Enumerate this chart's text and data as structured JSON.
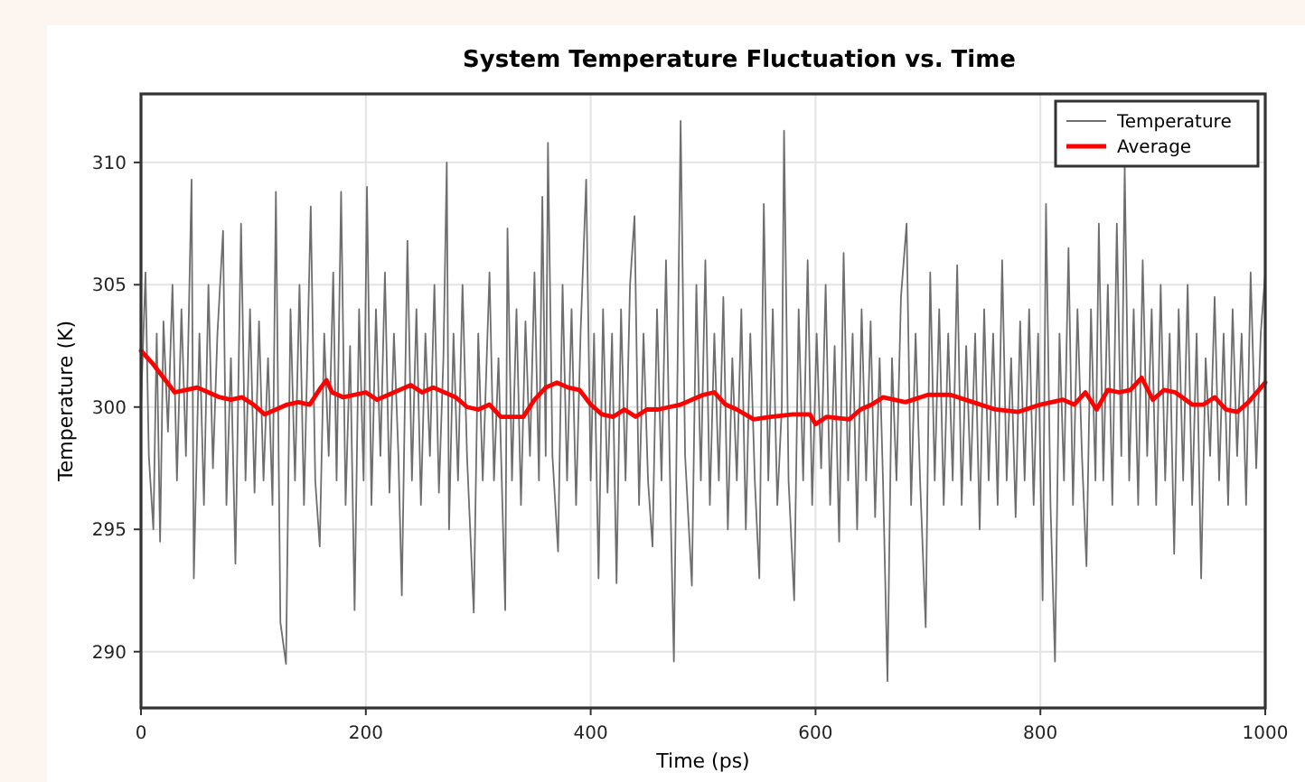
{
  "chart_data": {
    "type": "line",
    "title": "System Temperature Fluctuation vs. Time",
    "xlabel": "Time (ps)",
    "ylabel": "Temperature (K)",
    "xlim": [
      0,
      1000
    ],
    "ylim": [
      287.7,
      312.8
    ],
    "xticks": [
      0,
      200,
      400,
      600,
      800,
      1000
    ],
    "yticks": [
      290,
      295,
      300,
      305,
      310
    ],
    "grid": true,
    "legend": "top right",
    "line_style": "solid",
    "marker": "none",
    "series": [
      {
        "name": "Temperature",
        "color": "#6e6e6e",
        "x": [
          0,
          4,
          7,
          11,
          14,
          17,
          20,
          24,
          28,
          32,
          36,
          40,
          45,
          47,
          52,
          56,
          60,
          64,
          68,
          73,
          76,
          80,
          84,
          89,
          93,
          97,
          101,
          105,
          109,
          113,
          117,
          120,
          124,
          129,
          133,
          137,
          141,
          145,
          151,
          155,
          159,
          163,
          167,
          171,
          174,
          178,
          182,
          186,
          190,
          194,
          198,
          201,
          205,
          209,
          213,
          217,
          221,
          225,
          229,
          232,
          237,
          241,
          245,
          249,
          253,
          257,
          261,
          265,
          269,
          272,
          274,
          278,
          282,
          286,
          290,
          296,
          300,
          304,
          310,
          314,
          318,
          324,
          326,
          330,
          334,
          338,
          342,
          346,
          350,
          354,
          357,
          360,
          362,
          366,
          371,
          375,
          379,
          383,
          387,
          391,
          396,
          400,
          403,
          407,
          411,
          415,
          419,
          423,
          427,
          431,
          435,
          439,
          443,
          447,
          451,
          455,
          459,
          463,
          467,
          471,
          474,
          480,
          484,
          490,
          494,
          498,
          502,
          506,
          510,
          514,
          518,
          522,
          526,
          530,
          534,
          538,
          542,
          546,
          550,
          554,
          558,
          562,
          566,
          570,
          572,
          576,
          581,
          585,
          589,
          593,
          597,
          601,
          605,
          609,
          613,
          617,
          621,
          625,
          629,
          633,
          637,
          641,
          645,
          649,
          653,
          657,
          660,
          664,
          668,
          672,
          676,
          681,
          685,
          689,
          693,
          698,
          702,
          706,
          710,
          714,
          718,
          722,
          726,
          730,
          734,
          738,
          742,
          746,
          750,
          754,
          758,
          762,
          766,
          770,
          774,
          778,
          782,
          786,
          790,
          794,
          798,
          802,
          805,
          809,
          813,
          817,
          821,
          825,
          829,
          833,
          837,
          841,
          845,
          849,
          852,
          856,
          860,
          864,
          868,
          872,
          875,
          879,
          883,
          887,
          891,
          895,
          899,
          903,
          907,
          911,
          915,
          919,
          923,
          927,
          931,
          935,
          939,
          943,
          947,
          951,
          955,
          959,
          963,
          967,
          971,
          975,
          979,
          983,
          987,
          992,
          996,
          1000
        ],
        "values": [
          300,
          305.5,
          298,
          295,
          303,
          294.5,
          303.5,
          299,
          305,
          297,
          304,
          298,
          309.3,
          293,
          303,
          296,
          305,
          297.5,
          303,
          307.2,
          296,
          302,
          293.6,
          307.5,
          297,
          304,
          296.5,
          303.5,
          297,
          302,
          296,
          308.8,
          291.2,
          289.5,
          304,
          297,
          305,
          296,
          308.2,
          297,
          294.3,
          303,
          298,
          305.5,
          297,
          308.8,
          296,
          302.5,
          291.7,
          304,
          297,
          309,
          296,
          304,
          298,
          305.5,
          296.5,
          303,
          298,
          292.3,
          306.8,
          297,
          304,
          296,
          303,
          298,
          305,
          296.5,
          302,
          310,
          295,
          303,
          297,
          305,
          298,
          291.6,
          303,
          297,
          305.5,
          297,
          302,
          291.7,
          307.3,
          297,
          304,
          296,
          303.5,
          298,
          305.5,
          297,
          308.6,
          298,
          310.8,
          298,
          294.1,
          305,
          297,
          304,
          296,
          303,
          309.3,
          297,
          303,
          293,
          304,
          296.5,
          303,
          292.8,
          304,
          297,
          305,
          307.8,
          296,
          303,
          297,
          294.3,
          304,
          297,
          306,
          296,
          289.6,
          311.7,
          298,
          292.7,
          305,
          297,
          306,
          296,
          303,
          297,
          304.5,
          295,
          302,
          297,
          304,
          295,
          303,
          297,
          293,
          308.3,
          297,
          304,
          296,
          300,
          311.3,
          297,
          292.1,
          304,
          297,
          306,
          296,
          303,
          297.5,
          305,
          296,
          302.5,
          294.5,
          306.3,
          297,
          303,
          295,
          304,
          297,
          303.5,
          295.5,
          302,
          297,
          288.8,
          302,
          297,
          304.5,
          307.5,
          296,
          303,
          297,
          291,
          305.5,
          297,
          304,
          296,
          303,
          297,
          305.8,
          296,
          302.5,
          297,
          303,
          295,
          304,
          297,
          303,
          296,
          306,
          297,
          302,
          295.5,
          303.5,
          297,
          304,
          296,
          303,
          292.1,
          308.3,
          296,
          289.6,
          303,
          297,
          306.5,
          296,
          304,
          298,
          293.5,
          304,
          297,
          307.5,
          297,
          305,
          296,
          307.5,
          298,
          309.8,
          297,
          304,
          296,
          306,
          298,
          304,
          296,
          305,
          297,
          303,
          294,
          304,
          297,
          305,
          296,
          303,
          293,
          302,
          298,
          304.5,
          297,
          303,
          296,
          304,
          298,
          303,
          296,
          305.5,
          297.5,
          303,
          305.5
        ]
      },
      {
        "name": "Average",
        "color": "#ff0000",
        "x": [
          0,
          10,
          20,
          30,
          40,
          50,
          60,
          70,
          80,
          90,
          100,
          110,
          120,
          130,
          140,
          150,
          160,
          165,
          170,
          180,
          200,
          210,
          220,
          240,
          250,
          260,
          280,
          290,
          300,
          310,
          320,
          340,
          350,
          360,
          370,
          380,
          390,
          400,
          410,
          420,
          430,
          440,
          450,
          460,
          470,
          480,
          500,
          510,
          520,
          530,
          545,
          560,
          580,
          595,
          600,
          610,
          630,
          640,
          650,
          660,
          680,
          700,
          720,
          740,
          760,
          780,
          800,
          810,
          820,
          830,
          840,
          850,
          860,
          870,
          880,
          890,
          900,
          910,
          920,
          935,
          945,
          955,
          965,
          975,
          985,
          1000
        ],
        "values": [
          302.3,
          301.8,
          301.2,
          300.6,
          300.7,
          300.8,
          300.6,
          300.4,
          300.3,
          300.4,
          300.1,
          299.7,
          299.9,
          300.1,
          300.2,
          300.1,
          300.8,
          301.1,
          300.6,
          300.4,
          300.6,
          300.3,
          300.5,
          300.9,
          300.6,
          300.8,
          300.4,
          300,
          299.9,
          300.1,
          299.6,
          299.6,
          300.3,
          300.8,
          301,
          300.8,
          300.7,
          300.1,
          299.7,
          299.6,
          299.9,
          299.6,
          299.9,
          299.9,
          300,
          300.1,
          300.5,
          300.6,
          300.1,
          299.9,
          299.5,
          299.6,
          299.7,
          299.7,
          299.3,
          299.6,
          299.5,
          299.9,
          300.1,
          300.4,
          300.2,
          300.5,
          300.5,
          300.2,
          299.9,
          299.8,
          300.1,
          300.2,
          300.3,
          300.1,
          300.6,
          299.9,
          300.7,
          300.6,
          300.7,
          301.2,
          300.3,
          300.7,
          300.6,
          300.1,
          300.1,
          300.4,
          299.9,
          299.8,
          300.2,
          301
        ]
      }
    ]
  }
}
